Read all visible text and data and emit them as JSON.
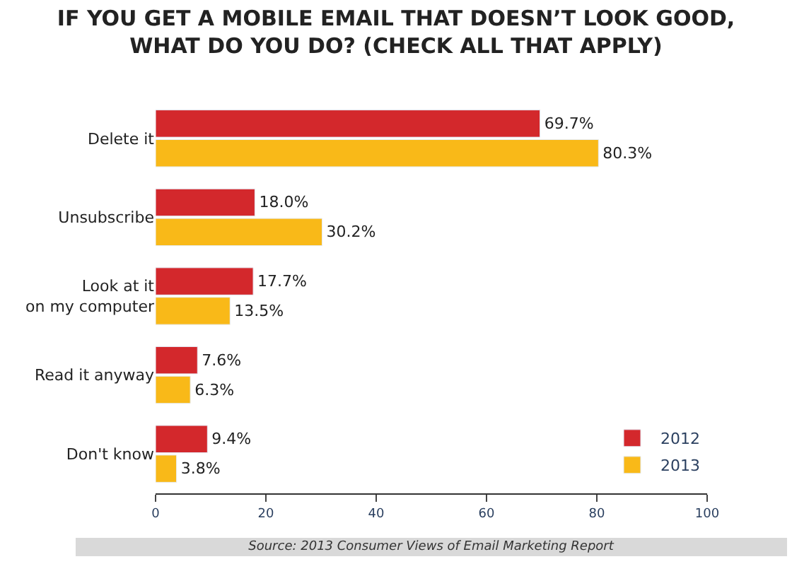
{
  "chart_data": {
    "type": "bar",
    "orientation": "horizontal",
    "title": "IF YOU GET A MOBILE EMAIL THAT DOESN’T LOOK GOOD,\nWHAT DO YOU DO? (CHECK ALL THAT APPLY)",
    "categories": [
      "Delete it",
      "Unsubscribe",
      "Look at it\non my computer",
      "Read it anyway",
      "Don't know"
    ],
    "series": [
      {
        "name": "2012",
        "color": "#d3282c",
        "values": [
          69.7,
          18.0,
          17.7,
          7.6,
          9.4
        ],
        "value_labels": [
          "69.7%",
          "18.0%",
          "17.7%",
          "7.6%",
          "9.4%"
        ]
      },
      {
        "name": "2013",
        "color": "#f9b918",
        "values": [
          80.3,
          30.2,
          13.5,
          6.3,
          3.8
        ],
        "value_labels": [
          "80.3%",
          "30.2%",
          "13.5%",
          "6.3%",
          "3.8%"
        ]
      }
    ],
    "xlim": [
      0,
      100
    ],
    "xticks": [
      0,
      20,
      40,
      60,
      80,
      100
    ],
    "legend": "bottom right",
    "annotations": [
      "Source: 2013 Consumer Views of Email Marketing Report"
    ]
  }
}
